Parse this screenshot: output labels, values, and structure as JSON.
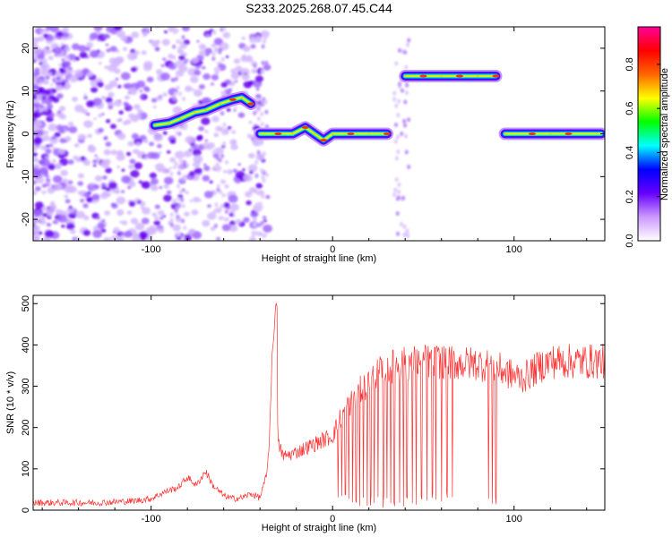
{
  "title": "S233.2025.268.07.45.C44",
  "chart_data": [
    {
      "type": "heatmap",
      "xlabel": "Height of straight line (km)",
      "ylabel": "Frequency (Hz)",
      "xlim": [
        -165,
        150
      ],
      "ylim": [
        -25,
        25
      ],
      "xticks": [
        -100,
        0,
        100
      ],
      "yticks": [
        -20,
        -10,
        0,
        10,
        20
      ],
      "colorbar": {
        "label": "Normalized spectral amplitude",
        "range": [
          0,
          0.97
        ],
        "ticks": [
          0.0,
          0.2,
          0.4,
          0.6,
          0.8
        ],
        "colors": [
          "#ffffff",
          "#cc99ff",
          "#6600ff",
          "#0000ff",
          "#00ffff",
          "#00ff00",
          "#ffff00",
          "#ff6600",
          "#ff0000",
          "#ff0099"
        ]
      },
      "ridge": [
        {
          "x": -98,
          "y": 2
        },
        {
          "x": -90,
          "y": 2.5
        },
        {
          "x": -84,
          "y": 3.5
        },
        {
          "x": -76,
          "y": 5
        },
        {
          "x": -70,
          "y": 5.5
        },
        {
          "x": -62,
          "y": 7
        },
        {
          "x": -55,
          "y": 8
        },
        {
          "x": -50,
          "y": 8.5
        },
        {
          "x": -45,
          "y": 7
        },
        {
          "x": -40,
          "y": 0
        },
        {
          "x": -30,
          "y": 0
        },
        {
          "x": -22,
          "y": 0
        },
        {
          "x": -15,
          "y": 1.5
        },
        {
          "x": -10,
          "y": 0
        },
        {
          "x": -5,
          "y": -1.5
        },
        {
          "x": 0,
          "y": 0
        },
        {
          "x": 10,
          "y": 0
        },
        {
          "x": 20,
          "y": 0
        },
        {
          "x": 30,
          "y": 0
        },
        {
          "x": 40,
          "y": 13.5
        },
        {
          "x": 50,
          "y": 13.5
        },
        {
          "x": 60,
          "y": 13.5
        },
        {
          "x": 70,
          "y": 13.5
        },
        {
          "x": 80,
          "y": 13.5
        },
        {
          "x": 90,
          "y": 13.5
        },
        {
          "x": 95,
          "y": 0
        },
        {
          "x": 110,
          "y": 0
        },
        {
          "x": 120,
          "y": 0
        },
        {
          "x": 130,
          "y": 0
        },
        {
          "x": 148,
          "y": 0
        }
      ]
    },
    {
      "type": "line",
      "xlabel": "Height of straight line (km)",
      "ylabel": "SNR (10 * v/v)",
      "xlim": [
        -165,
        150
      ],
      "ylim": [
        0,
        520
      ],
      "xticks": [
        -100,
        0,
        100
      ],
      "yticks": [
        0,
        100,
        200,
        300,
        400,
        500
      ],
      "color": "#ff3333",
      "envelope": [
        {
          "x": -165,
          "y": 18
        },
        {
          "x": -150,
          "y": 18
        },
        {
          "x": -130,
          "y": 18
        },
        {
          "x": -110,
          "y": 22
        },
        {
          "x": -100,
          "y": 28
        },
        {
          "x": -92,
          "y": 45
        },
        {
          "x": -85,
          "y": 55
        },
        {
          "x": -80,
          "y": 80
        },
        {
          "x": -75,
          "y": 60
        },
        {
          "x": -70,
          "y": 95
        },
        {
          "x": -66,
          "y": 60
        },
        {
          "x": -60,
          "y": 35
        },
        {
          "x": -55,
          "y": 28
        },
        {
          "x": -50,
          "y": 30
        },
        {
          "x": -45,
          "y": 40
        },
        {
          "x": -40,
          "y": 30
        },
        {
          "x": -36,
          "y": 90
        },
        {
          "x": -34,
          "y": 250
        },
        {
          "x": -32,
          "y": 420
        },
        {
          "x": -30,
          "y": 160
        },
        {
          "x": -27,
          "y": 130
        },
        {
          "x": -20,
          "y": 140
        },
        {
          "x": -10,
          "y": 160
        },
        {
          "x": 0,
          "y": 180
        },
        {
          "x": 5,
          "y": 230
        },
        {
          "x": 10,
          "y": 260
        },
        {
          "x": 15,
          "y": 290
        },
        {
          "x": 20,
          "y": 310
        },
        {
          "x": 25,
          "y": 330
        },
        {
          "x": 30,
          "y": 345
        },
        {
          "x": 40,
          "y": 355
        },
        {
          "x": 50,
          "y": 360
        },
        {
          "x": 60,
          "y": 360
        },
        {
          "x": 70,
          "y": 355
        },
        {
          "x": 80,
          "y": 355
        },
        {
          "x": 90,
          "y": 345
        },
        {
          "x": 100,
          "y": 325
        },
        {
          "x": 105,
          "y": 320
        },
        {
          "x": 110,
          "y": 335
        },
        {
          "x": 115,
          "y": 350
        },
        {
          "x": 120,
          "y": 360
        },
        {
          "x": 130,
          "y": 360
        },
        {
          "x": 140,
          "y": 360
        },
        {
          "x": 150,
          "y": 360
        }
      ],
      "peak": {
        "x": -31,
        "y": 515
      },
      "dropouts": [
        3,
        5,
        7,
        9,
        11,
        13,
        15,
        17,
        19,
        21,
        23,
        25,
        28,
        30,
        32,
        34,
        37,
        39,
        41,
        44,
        46,
        49,
        52,
        55,
        57,
        60,
        63,
        66,
        86,
        88,
        90
      ]
    }
  ]
}
